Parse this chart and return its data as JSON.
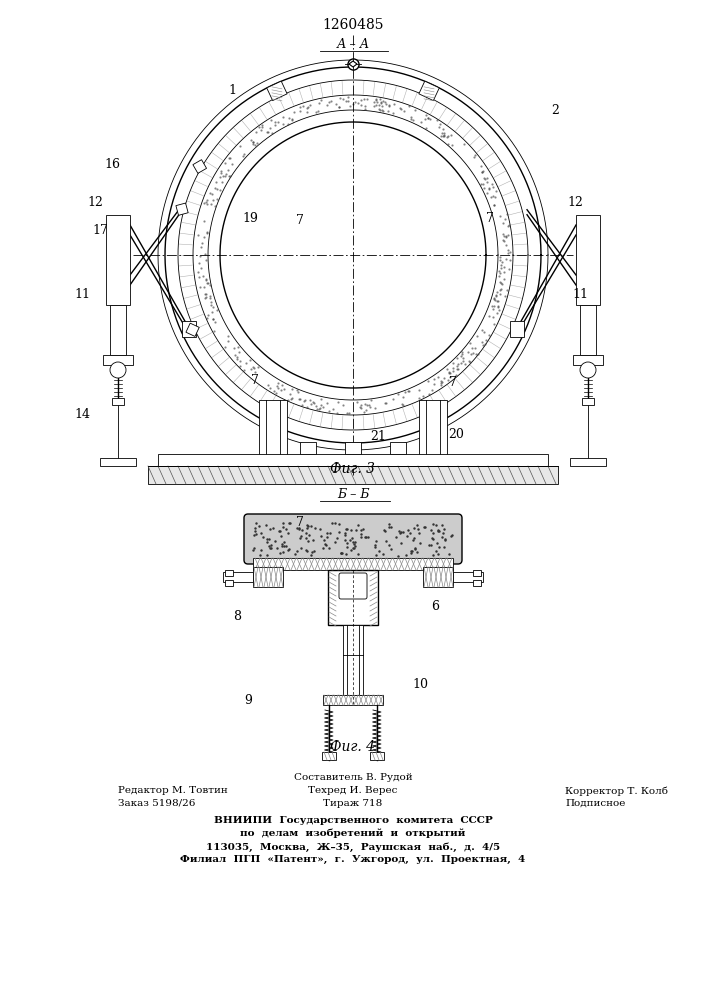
{
  "patent_number": "1260485",
  "fig3_label": "А – А",
  "fig3_caption": "Фиг. 3",
  "fig4_label": "Б – Б",
  "fig4_caption": "Фиг. 4",
  "footer_line1_left": "Редактор М. Товтин",
  "footer_line2_left": "Заказ 5198/26",
  "footer_line1_center": "Составитель В. Рудой",
  "footer_line2_center": "Техред И. Верес",
  "footer_line3_center": "Тираж 718",
  "footer_line2_right": "Корректор Т. Колб",
  "footer_line3_right": "Подписное",
  "footer_vniip1": "ВНИИПИ  Государственного  комитета  СССР",
  "footer_vniip2": "по  делам  изобретений  и  открытий",
  "footer_vniip3": "113035,  Москва,  Ж–35,  Раушская  наб.,  д.  4/5",
  "footer_vniip4": "Филиал  ПГП  «Патент»,  г.  Ужгород,  ул.  Проектная,  4",
  "bg_color": "#ffffff",
  "line_color": "#000000"
}
